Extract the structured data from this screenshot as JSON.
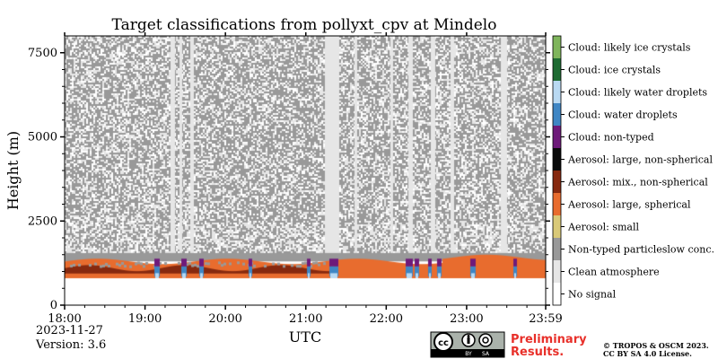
{
  "chart_data": {
    "type": "heatmap",
    "title": "Target classifications from pollyxt_cpv at Mindelo",
    "xlabel": "UTC",
    "ylabel": "Height (m)",
    "x_ticks": [
      "18:00",
      "19:00",
      "20:00",
      "21:00",
      "22:00",
      "23:00",
      "23:59"
    ],
    "x_range": [
      "18:00",
      "23:59"
    ],
    "y_ticks": [
      0,
      2500,
      5000,
      7500
    ],
    "ylim": [
      0,
      8000
    ],
    "legend_position": "right",
    "classes": [
      {
        "label": "Cloud: likely ice crystals",
        "color": "#7fb55c"
      },
      {
        "label": "Cloud: ice crystals",
        "color": "#1e6b32"
      },
      {
        "label": "Cloud: likely water droplets",
        "color": "#b9d9f2"
      },
      {
        "label": "Cloud: water droplets",
        "color": "#3f86c4"
      },
      {
        "label": "Cloud: non-typed",
        "color": "#6e1a7a"
      },
      {
        "label": "Aerosol: large, non-spherical",
        "color": "#0a0a0a"
      },
      {
        "label": "Aerosol: mix., non-spherical",
        "color": "#86290f"
      },
      {
        "label": "Aerosol: large, spherical",
        "color": "#e86c2e"
      },
      {
        "label": "Aerosol: small",
        "color": "#d9c978"
      },
      {
        "label": "Non-typed particleslow conc.",
        "color": "#999999"
      },
      {
        "label": "Clean atmosphere",
        "color": "#e6e6e6"
      },
      {
        "label": "No signal",
        "color": "#ffffff"
      }
    ]
  },
  "footer": {
    "date": "2023-11-27",
    "version": "Version: 3.6",
    "preliminary": [
      "Preliminary",
      "Results."
    ],
    "copyright": [
      "© TROPOS & OSCM 2023.",
      "CC BY SA 4.0 License."
    ]
  },
  "badge": {
    "cc": "cc",
    "by": "BY",
    "sa": "SA"
  }
}
